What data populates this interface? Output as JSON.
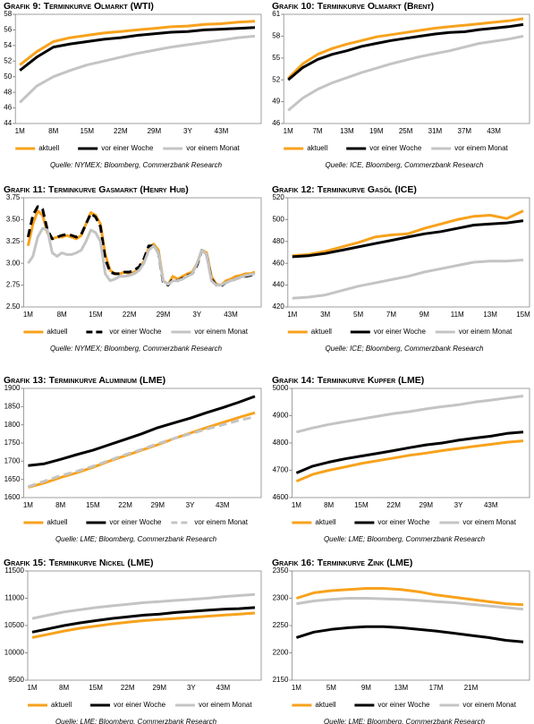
{
  "chart_data": [
    {
      "type": "line",
      "title": "Grafik 9: Terminkurve Olmarkt (WTI)",
      "source": "Quelle: NYMEX; Bloomberg, Commerzbank Research",
      "categories": [
        "1M",
        null,
        "8M",
        null,
        "15M",
        null,
        "22M",
        null,
        "29M",
        null,
        "3Y",
        null,
        "43M",
        null,
        null
      ],
      "ylim": [
        44,
        58
      ],
      "yticks": [
        44,
        46,
        48,
        50,
        52,
        54,
        56,
        58
      ],
      "series": [
        {
          "name": "aktuell",
          "color": "#f7a21c",
          "values": [
            51.5,
            53.2,
            54.5,
            55.0,
            55.3,
            55.6,
            55.8,
            56.0,
            56.2,
            56.4,
            56.5,
            56.7,
            56.8,
            57.0,
            57.1
          ]
        },
        {
          "name": "vor einer Woche",
          "color": "#000000",
          "values": [
            50.8,
            52.5,
            53.8,
            54.2,
            54.5,
            54.8,
            55.0,
            55.3,
            55.5,
            55.7,
            55.8,
            56.0,
            56.1,
            56.2,
            56.3
          ]
        },
        {
          "name": "vor einem Monat",
          "color": "#c4c4c4",
          "values": [
            46.7,
            48.8,
            50.0,
            50.8,
            51.5,
            52.0,
            52.5,
            53.0,
            53.4,
            53.8,
            54.1,
            54.4,
            54.7,
            55.0,
            55.2
          ]
        }
      ]
    },
    {
      "type": "line",
      "title": "Grafik 10: Terminkurve Olmarkt (Brent)",
      "source": "Quelle: ICE, Bloomberg, Commerzbank Research",
      "categories": [
        "1M",
        null,
        "7M",
        null,
        "13M",
        null,
        "19M",
        null,
        "25M",
        null,
        "31M",
        null,
        "37M",
        null,
        "43M",
        null,
        null
      ],
      "ylim": [
        46,
        61
      ],
      "yticks": [
        46,
        49,
        52,
        55,
        58,
        61
      ],
      "series": [
        {
          "name": "aktuell",
          "color": "#f7a21c",
          "values": [
            52.2,
            54.2,
            55.5,
            56.3,
            56.9,
            57.4,
            57.9,
            58.2,
            58.5,
            58.8,
            59.1,
            59.3,
            59.5,
            59.7,
            59.9,
            60.1,
            60.4
          ]
        },
        {
          "name": "vor einer Woche",
          "color": "#000000",
          "values": [
            52.0,
            53.7,
            54.8,
            55.5,
            56.0,
            56.6,
            57.0,
            57.4,
            57.7,
            58.0,
            58.3,
            58.5,
            58.6,
            58.9,
            59.1,
            59.3,
            59.6
          ]
        },
        {
          "name": "vor einem Monat",
          "color": "#c4c4c4",
          "values": [
            47.8,
            49.5,
            50.7,
            51.6,
            52.3,
            53.0,
            53.6,
            54.2,
            54.7,
            55.2,
            55.6,
            56.0,
            56.5,
            57.0,
            57.3,
            57.6,
            58.0
          ]
        }
      ]
    },
    {
      "type": "line",
      "title": "Grafik 11: Terminkurve Gasmarkt (Henry Hub)",
      "source": "Quelle: NYMEX; Bloomberg, Commerzbank Research",
      "categories": [
        "1M",
        null,
        null,
        null,
        null,
        null,
        null,
        "8M",
        null,
        null,
        null,
        null,
        null,
        null,
        "15M",
        null,
        null,
        null,
        null,
        null,
        null,
        "22M",
        null,
        null,
        null,
        null,
        null,
        null,
        "29M",
        null,
        null,
        null,
        null,
        null,
        null,
        "3Y",
        null,
        null,
        null,
        null,
        null,
        null,
        "43M",
        null,
        null,
        null,
        null,
        null
      ],
      "ylim": [
        2.5,
        3.75
      ],
      "yticks": [
        {
          "value": 2.5,
          "label": "2.50"
        },
        2.75,
        {
          "value": 3,
          "label": "3.00"
        },
        3.25,
        {
          "value": 3.5,
          "label": "3.50"
        },
        3.75
      ],
      "series": [
        {
          "name": "aktuell",
          "color": "#f7a21c",
          "values": [
            3.2,
            3.45,
            3.6,
            3.55,
            3.35,
            3.28,
            3.3,
            3.3,
            3.32,
            3.3,
            3.28,
            3.32,
            3.45,
            3.58,
            3.55,
            3.45,
            3.1,
            2.92,
            2.88,
            2.88,
            2.9,
            2.88,
            2.9,
            2.95,
            3.02,
            3.18,
            3.22,
            3.15,
            2.8,
            2.76,
            2.85,
            2.82,
            2.85,
            2.88,
            2.9,
            3.0,
            3.15,
            3.12,
            2.85,
            2.76,
            2.75,
            2.8,
            2.82,
            2.85,
            2.86,
            2.88,
            2.88,
            2.9
          ]
        },
        {
          "name": "vor einer Woche",
          "color": "#000000",
          "dashed": true,
          "values": [
            3.3,
            3.55,
            3.65,
            3.62,
            3.38,
            3.28,
            3.3,
            3.32,
            3.33,
            3.32,
            3.3,
            3.33,
            3.45,
            3.57,
            3.53,
            3.42,
            3.05,
            2.9,
            2.88,
            2.88,
            2.9,
            2.9,
            2.92,
            2.96,
            3.05,
            3.2,
            3.2,
            3.12,
            2.78,
            2.75,
            2.82,
            2.8,
            2.83,
            2.86,
            2.88,
            2.98,
            3.15,
            3.1,
            2.82,
            2.75,
            2.74,
            2.78,
            2.8,
            2.82,
            2.84,
            2.85,
            2.86,
            2.88
          ]
        },
        {
          "name": "vor einem Monat",
          "color": "#c4c4c4",
          "values": [
            3.0,
            3.08,
            3.3,
            3.4,
            3.38,
            3.12,
            3.08,
            3.12,
            3.1,
            3.1,
            3.12,
            3.15,
            3.25,
            3.38,
            3.35,
            3.25,
            2.88,
            2.8,
            2.82,
            2.85,
            2.85,
            2.86,
            2.88,
            2.92,
            3.0,
            3.15,
            3.2,
            3.12,
            2.8,
            2.76,
            2.8,
            2.8,
            2.82,
            2.85,
            2.88,
            3.0,
            3.15,
            3.1,
            2.8,
            2.75,
            2.75,
            2.78,
            2.8,
            2.82,
            2.84,
            2.86,
            2.87,
            2.88
          ]
        }
      ]
    },
    {
      "type": "line",
      "title": "Grafik 12: Terminkurve Gasöl (ICE)",
      "source": "Quelle: ICE; Bloomberg, Commerzbank Research",
      "categories": [
        "1M",
        null,
        "3M",
        null,
        "5M",
        null,
        "7M",
        null,
        "9M",
        null,
        "11M",
        null,
        "13M",
        null,
        "15M"
      ],
      "ylim": [
        420,
        520
      ],
      "yticks": [
        420,
        440,
        460,
        480,
        500,
        520
      ],
      "series": [
        {
          "name": "aktuell",
          "color": "#f7a21c",
          "values": [
            467,
            468,
            471,
            475,
            479,
            484,
            486,
            487,
            492,
            496,
            500,
            503,
            504,
            501,
            508
          ]
        },
        {
          "name": "vor einer Woche",
          "color": "#000000",
          "values": [
            466,
            467,
            469,
            472,
            475,
            478,
            481,
            484,
            487,
            489,
            492,
            495,
            496,
            497,
            499
          ]
        },
        {
          "name": "vor einem Monat",
          "color": "#c4c4c4",
          "values": [
            428,
            429,
            431,
            435,
            439,
            442,
            445,
            448,
            452,
            455,
            458,
            461,
            462,
            462,
            463
          ]
        }
      ]
    },
    {
      "type": "line",
      "title": "Grafik 13: Terminkurve Aluminium (LME)",
      "source": "Quelle: LME; Bloomberg, Commerzbank Research",
      "categories": [
        "1M",
        null,
        "8M",
        null,
        "15M",
        null,
        "22M",
        null,
        "29M",
        null,
        "3Y",
        null,
        "43M",
        null,
        null
      ],
      "ylim": [
        1600,
        1900
      ],
      "yticks": [
        1600,
        1650,
        1700,
        1750,
        1800,
        1850,
        1900
      ],
      "series": [
        {
          "name": "aktuell",
          "color": "#f7a21c",
          "values": [
            1628,
            1640,
            1655,
            1668,
            1683,
            1700,
            1715,
            1730,
            1745,
            1762,
            1777,
            1792,
            1806,
            1820,
            1833
          ]
        },
        {
          "name": "vor einer Woche",
          "color": "#000000",
          "values": [
            1688,
            1693,
            1705,
            1718,
            1730,
            1745,
            1760,
            1775,
            1792,
            1805,
            1818,
            1833,
            1847,
            1862,
            1878
          ]
        },
        {
          "name": "vor einem Monat",
          "color": "#c4c4c4",
          "dashed": true,
          "values": [
            1630,
            1645,
            1660,
            1672,
            1686,
            1702,
            1718,
            1732,
            1748,
            1762,
            1775,
            1788,
            1800,
            1812,
            1822
          ]
        }
      ]
    },
    {
      "type": "line",
      "title": "Grafik 14: Terminkurve Kupfer (LME)",
      "source": "Quelle: LME; Bloomberg, Commerzbank Research",
      "categories": [
        "1M",
        null,
        "8M",
        null,
        "15M",
        null,
        "22M",
        null,
        "29M",
        null,
        "3Y",
        null,
        "43M",
        null,
        null
      ],
      "ylim": [
        4600,
        5000
      ],
      "yticks": [
        4600,
        4700,
        4800,
        4900,
        5000
      ],
      "series": [
        {
          "name": "aktuell",
          "color": "#f7a21c",
          "values": [
            4660,
            4685,
            4700,
            4712,
            4725,
            4735,
            4745,
            4755,
            4763,
            4772,
            4780,
            4788,
            4795,
            4803,
            4808
          ]
        },
        {
          "name": "vor einer Woche",
          "color": "#000000",
          "values": [
            4690,
            4715,
            4730,
            4742,
            4752,
            4762,
            4772,
            4783,
            4793,
            4800,
            4810,
            4818,
            4825,
            4835,
            4840
          ]
        },
        {
          "name": "vor einem Monat",
          "color": "#c4c4c4",
          "values": [
            4840,
            4855,
            4868,
            4878,
            4888,
            4898,
            4908,
            4915,
            4925,
            4933,
            4940,
            4950,
            4957,
            4965,
            4972
          ]
        }
      ]
    },
    {
      "type": "line",
      "title": "Grafik 15: Terminkurve Nickel (LME)",
      "source": "Quelle: LME; Bloomberg, Commerzbank Research",
      "categories": [
        "1M",
        null,
        "8M",
        null,
        "15M",
        null,
        "22M",
        null,
        "29M",
        null,
        "3Y",
        null,
        "43M",
        null,
        null
      ],
      "ylim": [
        9500,
        11500
      ],
      "yticks": [
        9500,
        10000,
        10500,
        11000,
        11500
      ],
      "series": [
        {
          "name": "aktuell",
          "color": "#f7a21c",
          "values": [
            10280,
            10340,
            10400,
            10450,
            10490,
            10530,
            10560,
            10590,
            10610,
            10630,
            10650,
            10670,
            10690,
            10710,
            10730
          ]
        },
        {
          "name": "vor einer Woche",
          "color": "#000000",
          "values": [
            10380,
            10440,
            10500,
            10550,
            10590,
            10630,
            10660,
            10690,
            10710,
            10740,
            10760,
            10780,
            10800,
            10810,
            10830
          ]
        },
        {
          "name": "vor einem Monat",
          "color": "#c4c4c4",
          "values": [
            10630,
            10690,
            10750,
            10790,
            10830,
            10860,
            10890,
            10920,
            10940,
            10960,
            10980,
            11000,
            11030,
            11050,
            11070
          ]
        }
      ]
    },
    {
      "type": "line",
      "title": "Grafik 16: Terminkurve Zink (LME)",
      "source": "Quelle: LME; Bloomberg, Commerzbank Research",
      "categories": [
        "1M",
        null,
        "5M",
        null,
        "9M",
        null,
        "13M",
        null,
        "17M",
        null,
        "21M",
        null,
        null,
        null
      ],
      "ylim": [
        2150,
        2350
      ],
      "yticks": [
        2150,
        2200,
        2250,
        2300,
        2350
      ],
      "series": [
        {
          "name": "aktuell",
          "color": "#f7a21c",
          "values": [
            2300,
            2310,
            2314,
            2316,
            2318,
            2318,
            2316,
            2312,
            2306,
            2302,
            2298,
            2294,
            2290,
            2288
          ]
        },
        {
          "name": "vor einer Woche",
          "color": "#000000",
          "values": [
            2228,
            2238,
            2243,
            2246,
            2248,
            2248,
            2246,
            2243,
            2240,
            2236,
            2232,
            2228,
            2223,
            2220
          ]
        },
        {
          "name": "vor einem Monat",
          "color": "#c4c4c4",
          "values": [
            2290,
            2295,
            2298,
            2300,
            2300,
            2299,
            2298,
            2296,
            2294,
            2292,
            2289,
            2286,
            2283,
            2280
          ]
        }
      ]
    }
  ]
}
